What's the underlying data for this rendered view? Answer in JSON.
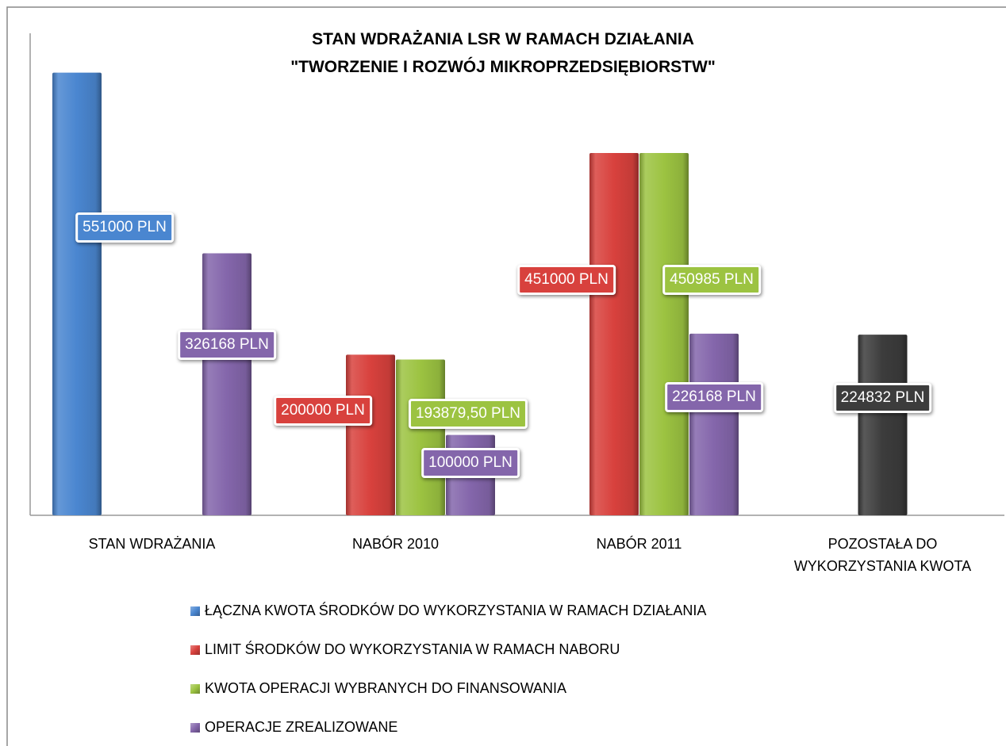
{
  "chart_data": {
    "type": "bar",
    "title": [
      "STAN WDRAŻANIA LSR W RAMACH DZIAŁANIA",
      "\"TWORZENIE I ROZWÓJ MIKROPRZEDSIĘBIORSTW\""
    ],
    "categories": [
      "STAN WDRAŻANIA",
      "NABÓR 2010",
      "NABÓR 2011",
      "POZOSTAŁA DO WYKORZYSTANIA KWOTA"
    ],
    "ylim": [
      0,
      600000
    ],
    "legend": "bottom",
    "series": [
      {
        "name": "ŁĄCZNA KWOTA ŚRODKÓW DO WYKORZYSTANIA W RAMACH  DZIAŁANIA",
        "color": "#4a86d0",
        "values": [
          551000,
          null,
          null,
          null
        ],
        "value_labels": [
          "551000 PLN",
          null,
          null,
          null
        ]
      },
      {
        "name": "LIMIT ŚRODKÓW DO WYKORZYSTANIA W RAMACH NABORU",
        "color": "#d8413d",
        "values": [
          null,
          200000,
          451000,
          null
        ],
        "value_labels": [
          null,
          "200000 PLN",
          "451000 PLN",
          null
        ]
      },
      {
        "name": "KWOTA OPERACJI WYBRANYCH DO FINANSOWANIA",
        "color": "#9cc341",
        "values": [
          null,
          193879.5,
          450985,
          null
        ],
        "value_labels": [
          null,
          "193879,50 PLN",
          "450985 PLN",
          null
        ]
      },
      {
        "name": "OPERACJE ZREALIZOWANE",
        "color": "#8466ab",
        "values": [
          326168,
          100000,
          226168,
          null
        ],
        "value_labels": [
          "326168 PLN",
          "100000 PLN",
          "226168 PLN",
          null
        ]
      },
      {
        "color": "#3c3c3c",
        "values": [
          null,
          null,
          null,
          224832
        ],
        "value_labels": [
          null,
          null,
          null,
          "224832 PLN"
        ]
      }
    ]
  }
}
